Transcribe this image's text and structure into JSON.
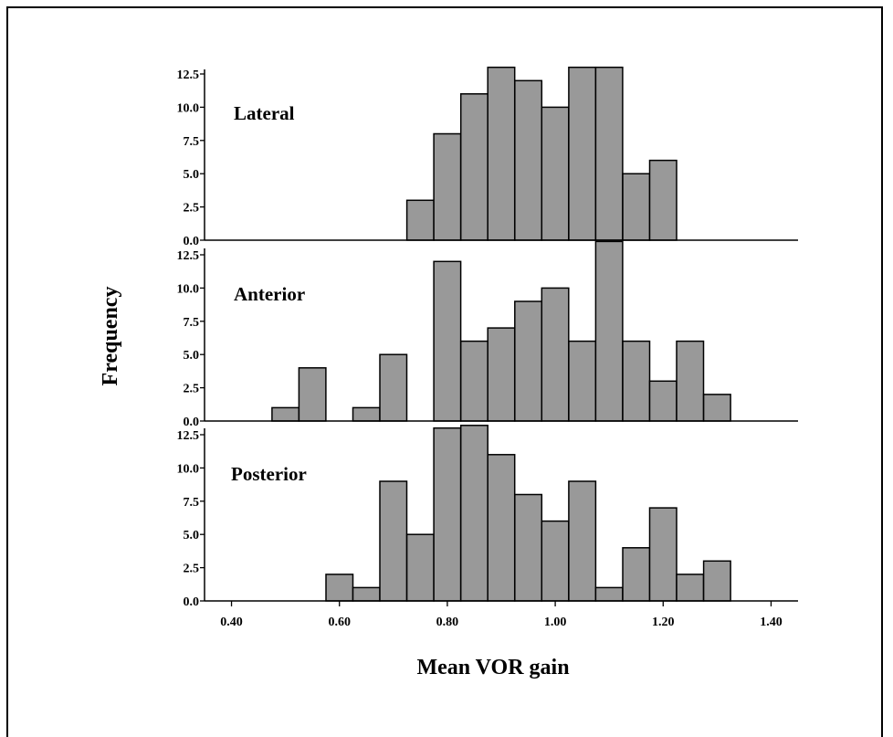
{
  "chart_data": {
    "type": "bar",
    "subtype": "stacked-panel-histogram",
    "xlabel": "Mean VOR gain",
    "ylabel": "Frequency",
    "xlim": [
      0.35,
      1.45
    ],
    "x_ticks": [
      "0.40",
      "0.60",
      "0.80",
      "1.00",
      "1.20",
      "1.40"
    ],
    "y_ticks": [
      "0.0",
      "2.5",
      "5.0",
      "7.5",
      "10.0",
      "12.5"
    ],
    "ylim": [
      0,
      13.8
    ],
    "bin_width": 0.05,
    "bar_color": "#999999",
    "edge_color": "#000000",
    "panels": [
      {
        "name": "Lateral",
        "bins": [
          {
            "x0": 0.725,
            "value": 3
          },
          {
            "x0": 0.775,
            "value": 8
          },
          {
            "x0": 0.825,
            "value": 11
          },
          {
            "x0": 0.875,
            "value": 13
          },
          {
            "x0": 0.925,
            "value": 12
          },
          {
            "x0": 0.975,
            "value": 10
          },
          {
            "x0": 1.025,
            "value": 13
          },
          {
            "x0": 1.075,
            "value": 13
          },
          {
            "x0": 1.125,
            "value": 5
          },
          {
            "x0": 1.175,
            "value": 6
          }
        ]
      },
      {
        "name": "Anterior",
        "bins": [
          {
            "x0": 0.475,
            "value": 1
          },
          {
            "x0": 0.525,
            "value": 4
          },
          {
            "x0": 0.625,
            "value": 1
          },
          {
            "x0": 0.675,
            "value": 5
          },
          {
            "x0": 0.775,
            "value": 12
          },
          {
            "x0": 0.825,
            "value": 6
          },
          {
            "x0": 0.875,
            "value": 7
          },
          {
            "x0": 0.925,
            "value": 9
          },
          {
            "x0": 0.975,
            "value": 10
          },
          {
            "x0": 1.025,
            "value": 6
          },
          {
            "x0": 1.075,
            "value": 13.5
          },
          {
            "x0": 1.125,
            "value": 6
          },
          {
            "x0": 1.175,
            "value": 3
          },
          {
            "x0": 1.225,
            "value": 6
          },
          {
            "x0": 1.275,
            "value": 2
          }
        ]
      },
      {
        "name": "Posterior",
        "bins": [
          {
            "x0": 0.575,
            "value": 2
          },
          {
            "x0": 0.625,
            "value": 1
          },
          {
            "x0": 0.675,
            "value": 9
          },
          {
            "x0": 0.725,
            "value": 5
          },
          {
            "x0": 0.775,
            "value": 13
          },
          {
            "x0": 0.825,
            "value": 13.2
          },
          {
            "x0": 0.875,
            "value": 11
          },
          {
            "x0": 0.925,
            "value": 8
          },
          {
            "x0": 0.975,
            "value": 6
          },
          {
            "x0": 1.025,
            "value": 9
          },
          {
            "x0": 1.075,
            "value": 1
          },
          {
            "x0": 1.125,
            "value": 4
          },
          {
            "x0": 1.175,
            "value": 7
          },
          {
            "x0": 1.225,
            "value": 2
          },
          {
            "x0": 1.275,
            "value": 3
          }
        ]
      }
    ]
  }
}
